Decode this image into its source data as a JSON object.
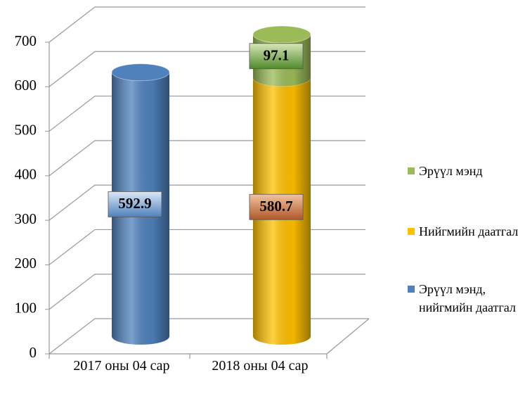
{
  "chart_data": {
    "type": "bar",
    "stacked": true,
    "categories": [
      "2017 оны 04 сар",
      "2018 оны 04 сар"
    ],
    "series": [
      {
        "name": "Эрүүл мэнд, нийгмийн даатгал",
        "color": "#4f81bd",
        "values": [
          592.9,
          null
        ]
      },
      {
        "name": "Нийгмийн даатгал",
        "color": "#ffc000",
        "values": [
          null,
          580.7
        ]
      },
      {
        "name": "Эрүүл мэнд",
        "color": "#9bbb59",
        "values": [
          null,
          97.1
        ]
      }
    ],
    "ylim": [
      0,
      700
    ],
    "yticks": [
      0,
      100,
      200,
      300,
      400,
      500,
      600,
      700
    ],
    "grid": true,
    "legend": "right"
  }
}
